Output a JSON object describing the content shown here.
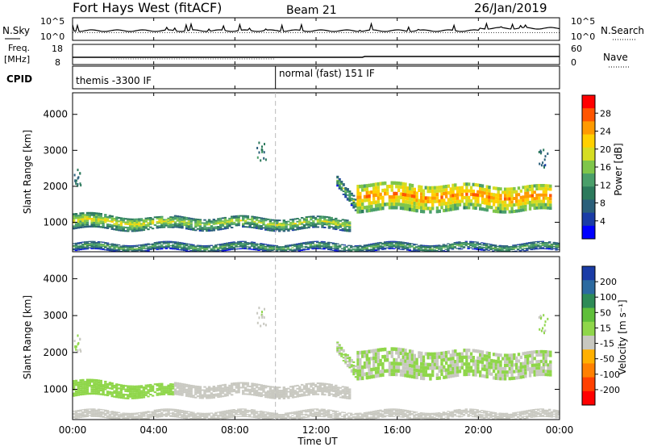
{
  "header": {
    "station": "Fort Hays West (fitACF)",
    "beam": "Beam 21",
    "date": "26/Jan/2019"
  },
  "panels": {
    "nsky": {
      "left_label": "N.Sky",
      "right_label": "N.Search",
      "left_ticks": [
        "10^5",
        "10^0"
      ],
      "right_ticks": [
        "10^5",
        "10^0"
      ]
    },
    "freq": {
      "left_label_1": "Freq.",
      "left_label_2": "[MHz]",
      "left_ticks": [
        "18",
        "8"
      ],
      "right_label": "Nave",
      "right_ticks": [
        "60",
        "0"
      ]
    },
    "cpid": {
      "label": "CPID",
      "mode_1": "themis -3300 IF",
      "mode_2": "normal (fast) 151 IF",
      "mode_change_time_h": 10.0
    }
  },
  "colorbars": {
    "power": {
      "label": "Power [dB]",
      "ticks": [
        "28",
        "24",
        "20",
        "16",
        "12",
        "8",
        "4"
      ],
      "colors": [
        "#ff0000",
        "#ff5500",
        "#ff9a00",
        "#ffd000",
        "#d6dd22",
        "#7fc64a",
        "#4a9f6a",
        "#2c7a5c",
        "#2a5f7a",
        "#1a3ca6",
        "#0000ff"
      ]
    },
    "velocity": {
      "label": "Velocity [m s⁻¹]",
      "ticks": [
        "200",
        "100",
        "50",
        "15",
        "-15",
        "-50",
        "-100",
        "-200"
      ],
      "colors": [
        "#1a3ca6",
        "#2c6aa0",
        "#2e8b57",
        "#5fbf3a",
        "#8fd64a",
        "#c8c8c0",
        "#ffb000",
        "#ff8000",
        "#ff4000",
        "#ff0000"
      ]
    }
  },
  "axes": {
    "xlabel": "Time UT",
    "ylabel": "Slant Range [km]",
    "xticks": [
      "00:00",
      "04:00",
      "08:00",
      "12:00",
      "16:00",
      "20:00",
      "00:00"
    ],
    "yticks": [
      "1000",
      "2000",
      "3000",
      "4000"
    ]
  },
  "chart_data": {
    "type": "heatmap",
    "title": "Fort Hays West (fitACF)   Beam 21   26/Jan/2019",
    "xlabel": "Time UT",
    "ylabel": "Slant Range [km]",
    "xlim_hours": [
      0,
      24
    ],
    "ylim_km": [
      180,
      4600
    ],
    "power_range_db": [
      0,
      32
    ],
    "velocity_range_ms": [
      -250,
      250
    ],
    "scatter_bands": [
      {
        "t_start": 0.0,
        "t_end": 5.0,
        "r_low_start": 800,
        "r_high_start": 1250,
        "r_low_end": 780,
        "r_high_end": 1100,
        "power_db": 14,
        "velocity": 20
      },
      {
        "t_start": 5.0,
        "t_end": 13.7,
        "r_low_start": 800,
        "r_high_start": 1150,
        "r_low_end": 780,
        "r_high_end": 1120,
        "power_db": 12,
        "velocity": -25
      },
      {
        "t_start": 13.0,
        "t_end": 14.0,
        "r_low_start": 2000,
        "r_high_start": 2300,
        "r_low_end": 1300,
        "r_high_end": 1700,
        "power_db": 9,
        "velocity": 0
      },
      {
        "t_start": 14.0,
        "t_end": 23.6,
        "r_low_start": 1300,
        "r_high_start": 2100,
        "r_low_end": 1300,
        "r_high_end": 2000,
        "power_db": 20,
        "velocity": 0
      },
      {
        "t_start": 0.0,
        "t_end": 24.0,
        "r_low_start": 190,
        "r_high_start": 420,
        "r_low_end": 190,
        "r_high_end": 420,
        "power_db": 8,
        "velocity": -20
      }
    ],
    "isolated_clusters": [
      {
        "t": 9.3,
        "r": 3000,
        "power_db": 10
      },
      {
        "t": 23.2,
        "r": 2800,
        "power_db": 6
      },
      {
        "t": 0.15,
        "r": 2250,
        "power_db": 8
      }
    ]
  }
}
